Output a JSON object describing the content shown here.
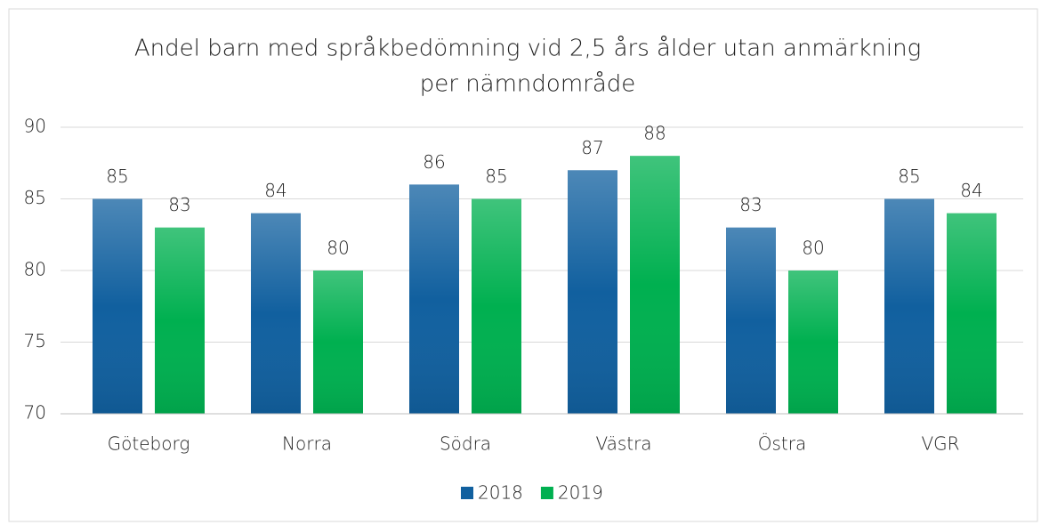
{
  "chart_data": {
    "type": "bar",
    "title": [
      "Andel  barn med språkbedömning vid 2,5 års ålder utan anmärkning",
      "per nämndområde"
    ],
    "categories": [
      "Göteborg",
      "Norra",
      "Södra",
      "Västra",
      "Östra",
      "VGR"
    ],
    "series": [
      {
        "name": "2018",
        "color": "#11609f",
        "values": [
          85,
          84,
          86,
          87,
          83,
          85
        ]
      },
      {
        "name": "2019",
        "color": "#00b050",
        "values": [
          83,
          80,
          85,
          88,
          80,
          84
        ]
      }
    ],
    "ylim": [
      70,
      90
    ],
    "yticks": [
      70,
      75,
      80,
      85,
      90
    ],
    "grid": true,
    "legend": "bottom"
  }
}
